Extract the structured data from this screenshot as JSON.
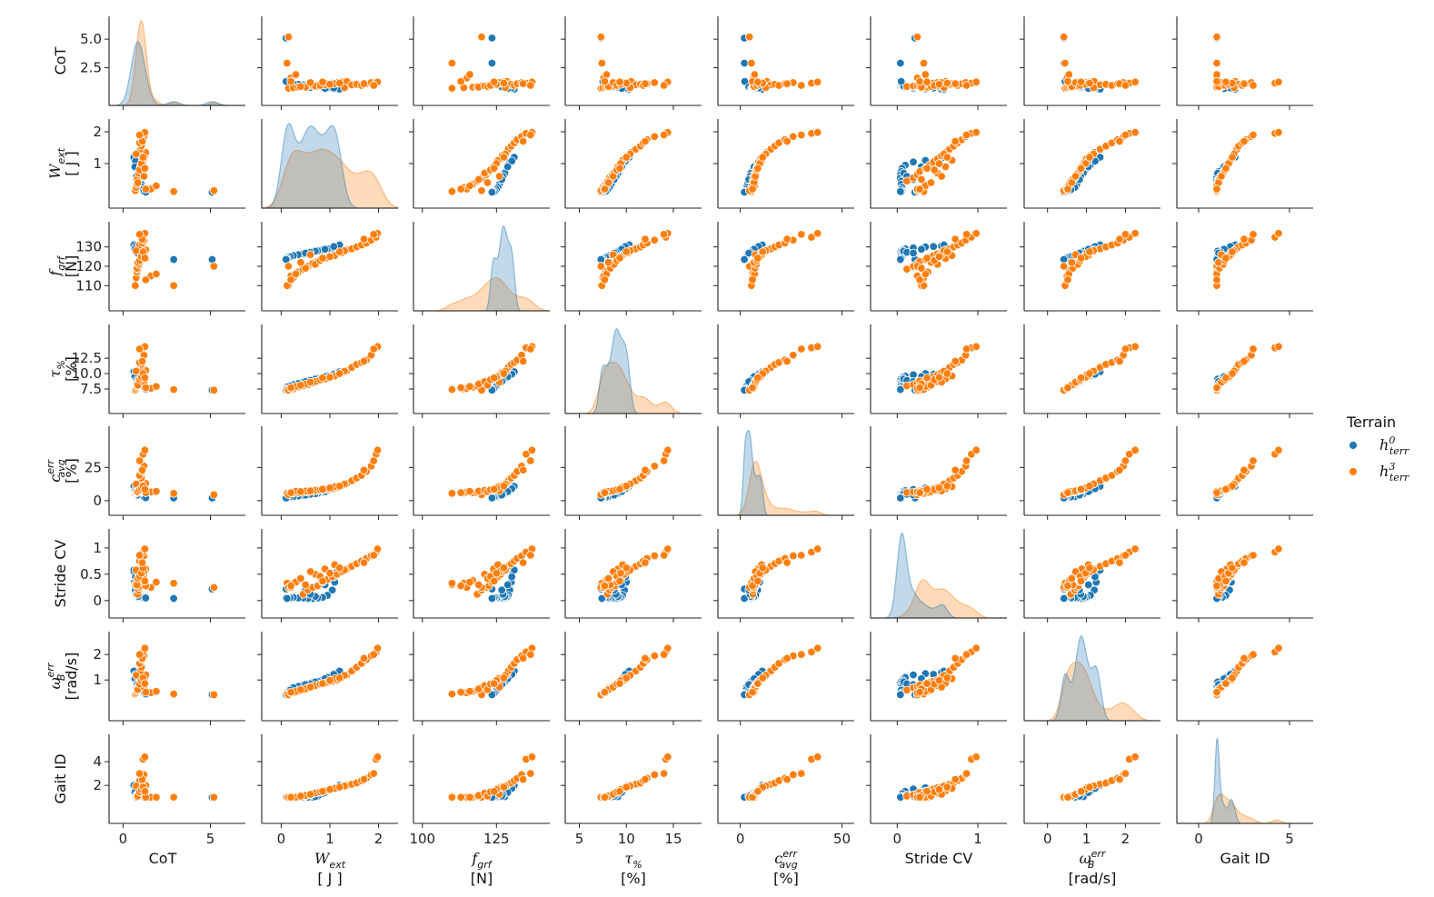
{
  "chart_data": {
    "type": "pairplot",
    "legend": {
      "title": "Terrain",
      "placement": "right",
      "entries": [
        {
          "key": "h0",
          "base": "h",
          "sup": "0",
          "sub": "terr",
          "color": "#1f77b4"
        },
        {
          "key": "h3",
          "base": "h",
          "sup": "3",
          "sub": "terr",
          "color": "#ff7f0e"
        }
      ]
    },
    "colors": {
      "h0": "#1f77b4",
      "h3": "#ff7f0e",
      "axis": "#222222"
    },
    "variables": [
      {
        "key": "CoT",
        "ylabel_lines": [
          "CoT"
        ],
        "xlabel_lines": [
          "CoT"
        ],
        "range": [
          -0.8,
          7.0
        ],
        "xticks": [
          0,
          5
        ],
        "yticks": [
          2.5,
          5.0
        ],
        "ytick_labels": [
          "2.5",
          "5.0"
        ]
      },
      {
        "key": "Wext",
        "ylabel_lines": [
          "W_ext",
          "[ J ]"
        ],
        "xlabel_lines": [
          "W_ext",
          "[ J ]"
        ],
        "range": [
          -0.4,
          2.4
        ],
        "xticks": [
          0,
          1,
          2
        ],
        "yticks": [
          1,
          2
        ],
        "ytick_labels": [
          "1",
          "2"
        ]
      },
      {
        "key": "fgrf",
        "ylabel_lines": [
          "f_grf",
          "[N]"
        ],
        "xlabel_lines": [
          "f_grf",
          "[N]"
        ],
        "range": [
          97,
          143
        ],
        "xticks": [
          100,
          125
        ],
        "yticks": [
          110,
          120,
          130
        ],
        "ytick_labels": [
          "110",
          "120",
          "130"
        ]
      },
      {
        "key": "tau",
        "ylabel_lines": [
          "τ_%",
          "[%]"
        ],
        "xlabel_lines": [
          "τ_%",
          "[%]"
        ],
        "range": [
          3.5,
          18.0
        ],
        "xticks": [
          5,
          10,
          15
        ],
        "yticks": [
          7.5,
          10.0,
          12.5
        ],
        "ytick_labels": [
          "7.5",
          "10.0",
          "12.5"
        ]
      },
      {
        "key": "cerr",
        "ylabel_lines": [
          "c_avg^err",
          "[%]"
        ],
        "xlabel_lines": [
          "c_avg^err",
          "[%]"
        ],
        "range": [
          -11,
          56
        ],
        "xticks": [
          0,
          50
        ],
        "yticks": [
          0,
          25
        ],
        "ytick_labels": [
          "0",
          "25"
        ]
      },
      {
        "key": "StrideCV",
        "ylabel_lines": [
          "Stride CV"
        ],
        "xlabel_lines": [
          "Stride CV"
        ],
        "range": [
          -0.33,
          1.36
        ],
        "xticks": [
          0,
          1
        ],
        "yticks": [
          0,
          0.5,
          1
        ],
        "ytick_labels": [
          "0",
          "0.5",
          "1"
        ]
      },
      {
        "key": "omega",
        "ylabel_lines": [
          "ω_B^err",
          "[rad/s]"
        ],
        "xlabel_lines": [
          "ω_B^err",
          "[rad/s]"
        ],
        "range": [
          -0.6,
          2.9
        ],
        "xticks": [
          0,
          1,
          2
        ],
        "yticks": [
          1,
          2
        ],
        "ytick_labels": [
          "1",
          "2"
        ]
      },
      {
        "key": "GaitID",
        "ylabel_lines": [
          "Gait ID"
        ],
        "xlabel_lines": [
          "Gait ID"
        ],
        "range": [
          -1.2,
          6.3
        ],
        "xticks": [
          0,
          5
        ],
        "yticks": [
          2,
          4
        ],
        "ytick_labels": [
          "2",
          "4"
        ]
      }
    ],
    "series": [
      {
        "name": "h0",
        "label_key": "h0",
        "points": [
          [
            0.6,
            1.15,
            130.5,
            10.2,
            10.5,
            0.55,
            1.3,
            1.9
          ],
          [
            0.65,
            1.1,
            130.0,
            10.0,
            9.5,
            0.35,
            1.25,
            1.8
          ],
          [
            0.7,
            1.05,
            129.5,
            9.8,
            8.5,
            0.2,
            1.2,
            1.7
          ],
          [
            0.75,
            0.95,
            129.0,
            9.6,
            7.5,
            0.1,
            1.1,
            1.5
          ],
          [
            0.8,
            0.85,
            128.5,
            9.4,
            6.5,
            0.06,
            1.0,
            1.3
          ],
          [
            0.85,
            0.75,
            128.0,
            9.2,
            5.5,
            0.05,
            0.95,
            1.1
          ],
          [
            0.9,
            0.65,
            127.5,
            9.0,
            5.0,
            0.04,
            0.9,
            1.0
          ],
          [
            0.95,
            0.55,
            127.0,
            8.8,
            4.5,
            0.04,
            0.85,
            1.0
          ],
          [
            1.0,
            0.45,
            126.5,
            8.6,
            4.0,
            0.05,
            0.8,
            1.0
          ],
          [
            1.05,
            0.35,
            126.0,
            8.4,
            3.5,
            0.05,
            0.75,
            1.0
          ],
          [
            1.1,
            0.25,
            125.5,
            8.2,
            3.0,
            0.06,
            0.7,
            1.0
          ],
          [
            1.15,
            0.18,
            125.0,
            8.0,
            2.8,
            0.05,
            0.6,
            1.0
          ],
          [
            1.2,
            0.12,
            124.5,
            7.8,
            2.6,
            0.06,
            0.5,
            1.0
          ],
          [
            0.62,
            1.2,
            131.0,
            10.3,
            10.8,
            0.58,
            1.35,
            2.0
          ],
          [
            0.72,
            1.08,
            130.2,
            9.9,
            9.0,
            0.45,
            1.22,
            1.75
          ],
          [
            0.88,
            0.7,
            127.8,
            9.1,
            5.2,
            0.08,
            0.92,
            1.05
          ],
          [
            1.3,
            0.1,
            124.0,
            7.5,
            2.2,
            0.05,
            0.45,
            1.0
          ],
          [
            2.9,
            0.12,
            123.5,
            7.4,
            2.0,
            0.04,
            0.42,
            1.0
          ],
          [
            5.1,
            0.1,
            123.5,
            7.3,
            2.0,
            0.22,
            0.42,
            1.0
          ],
          [
            0.68,
            0.9,
            128.8,
            9.5,
            6.8,
            0.3,
            1.05,
            1.4
          ],
          [
            0.78,
            0.6,
            127.2,
            8.9,
            4.8,
            0.12,
            0.85,
            1.2
          ],
          [
            0.82,
            0.5,
            126.8,
            8.7,
            4.2,
            0.2,
            0.82,
            1.1
          ]
        ]
      },
      {
        "name": "h3",
        "label_key": "h3",
        "points": [
          [
            0.7,
            0.15,
            110.0,
            7.3,
            5.5,
            0.3,
            0.45,
            1.0
          ],
          [
            0.75,
            0.25,
            114.0,
            7.5,
            5.8,
            0.33,
            0.5,
            1.0
          ],
          [
            0.8,
            0.35,
            117.0,
            7.8,
            6.0,
            0.38,
            0.55,
            1.0
          ],
          [
            0.85,
            0.45,
            118.5,
            8.0,
            6.2,
            0.12,
            0.6,
            1.1
          ],
          [
            0.9,
            0.55,
            120.0,
            8.2,
            6.5,
            0.2,
            0.7,
            1.2
          ],
          [
            0.95,
            0.65,
            121.5,
            8.5,
            7.0,
            0.25,
            0.75,
            1.3
          ],
          [
            1.0,
            0.75,
            122.5,
            8.8,
            7.5,
            0.28,
            0.8,
            1.4
          ],
          [
            1.05,
            0.85,
            123.5,
            9.0,
            8.0,
            0.35,
            0.85,
            1.5
          ],
          [
            1.1,
            0.95,
            124.5,
            9.2,
            8.5,
            0.4,
            0.9,
            1.6
          ],
          [
            1.15,
            1.05,
            125.5,
            9.5,
            9.0,
            0.45,
            0.95,
            1.7
          ],
          [
            1.2,
            1.15,
            126.5,
            9.8,
            10.0,
            0.5,
            1.0,
            1.8
          ],
          [
            1.25,
            1.25,
            127.0,
            10.2,
            11.5,
            0.55,
            1.1,
            1.9
          ],
          [
            1.3,
            1.35,
            128.5,
            10.5,
            13.0,
            0.6,
            1.2,
            2.0
          ],
          [
            1.0,
            1.45,
            129.0,
            11.0,
            15.0,
            0.65,
            1.35,
            2.1
          ],
          [
            1.05,
            1.55,
            130.0,
            11.5,
            17.0,
            0.7,
            1.5,
            2.2
          ],
          [
            0.95,
            1.65,
            131.0,
            11.8,
            19.0,
            0.75,
            1.65,
            2.4
          ],
          [
            1.1,
            1.75,
            132.0,
            12.2,
            22.0,
            0.8,
            1.8,
            2.6
          ],
          [
            1.2,
            1.85,
            133.5,
            13.0,
            26.0,
            0.85,
            1.95,
            2.9
          ],
          [
            1.15,
            1.95,
            135.0,
            14.2,
            35.0,
            0.92,
            2.1,
            4.2
          ],
          [
            1.25,
            1.98,
            137.0,
            14.4,
            38.0,
            0.98,
            2.25,
            4.4
          ],
          [
            2.9,
            0.12,
            110.0,
            7.4,
            5.5,
            0.33,
            0.45,
            1.0
          ],
          [
            5.2,
            0.15,
            120.0,
            7.3,
            4.5,
            0.25,
            0.42,
            1.0
          ],
          [
            1.6,
            0.2,
            115.0,
            7.6,
            6.5,
            0.25,
            0.5,
            1.0
          ],
          [
            1.9,
            0.3,
            116.0,
            7.9,
            7.0,
            0.35,
            0.55,
            1.0
          ],
          [
            0.8,
            0.5,
            119.0,
            8.3,
            7.2,
            0.3,
            0.65,
            1.15
          ],
          [
            0.9,
            0.7,
            121.0,
            8.7,
            7.8,
            0.5,
            0.78,
            1.35
          ],
          [
            1.0,
            0.9,
            124.0,
            9.1,
            8.8,
            0.6,
            0.88,
            1.55
          ],
          [
            1.1,
            1.1,
            125.5,
            9.6,
            10.5,
            0.68,
            1.05,
            1.75
          ],
          [
            0.85,
            0.4,
            122.0,
            8.1,
            6.8,
            0.42,
            0.62,
            1.1
          ],
          [
            1.2,
            0.6,
            126.0,
            8.6,
            7.4,
            0.55,
            0.72,
            1.25
          ],
          [
            0.75,
            1.3,
            128.0,
            10.4,
            12.5,
            0.58,
            1.18,
            1.95
          ],
          [
            1.3,
            0.2,
            113.0,
            7.7,
            6.0,
            0.28,
            0.52,
            1.0
          ],
          [
            0.95,
            0.8,
            123.0,
            9.0,
            8.2,
            0.46,
            0.84,
            1.45
          ],
          [
            1.05,
            1.0,
            125.0,
            9.4,
            9.6,
            0.52,
            0.98,
            1.65
          ],
          [
            1.15,
            1.2,
            127.5,
            10.0,
            11.0,
            0.62,
            1.08,
            1.85
          ],
          [
            1.1,
            1.7,
            134.0,
            12.0,
            23.0,
            0.72,
            1.85,
            2.5
          ],
          [
            0.95,
            1.9,
            136.5,
            14.0,
            30.0,
            0.86,
            2.0,
            3.0
          ],
          [
            1.25,
            0.85,
            124.2,
            9.3,
            8.6,
            0.37,
            0.86,
            1.5
          ]
        ]
      }
    ]
  }
}
